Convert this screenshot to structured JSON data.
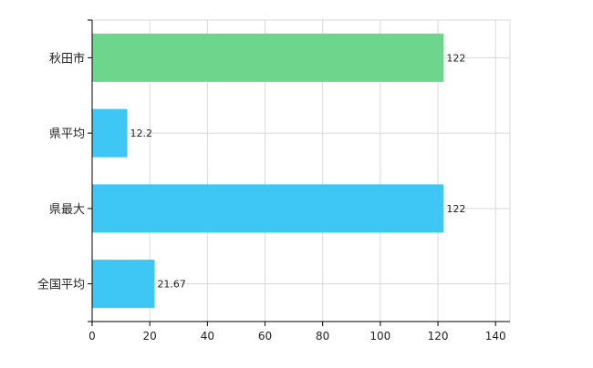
{
  "chart_data": {
    "type": "bar",
    "orientation": "horizontal",
    "categories": [
      "秋田市",
      "県平均",
      "県最大",
      "全国平均"
    ],
    "values": [
      122,
      12.2,
      122,
      21.67
    ],
    "value_labels": [
      "122",
      "12.2",
      "122",
      "21.67"
    ],
    "bar_colors": [
      "#6dd58c",
      "#3ec6f5",
      "#3ec6f5",
      "#3ec6f5"
    ],
    "xlim": [
      0,
      145
    ],
    "xticks": [
      0,
      20,
      40,
      60,
      80,
      100,
      120,
      140
    ],
    "grid": true,
    "grid_color": "#d9d9d9",
    "axis_color": "#000000"
  }
}
